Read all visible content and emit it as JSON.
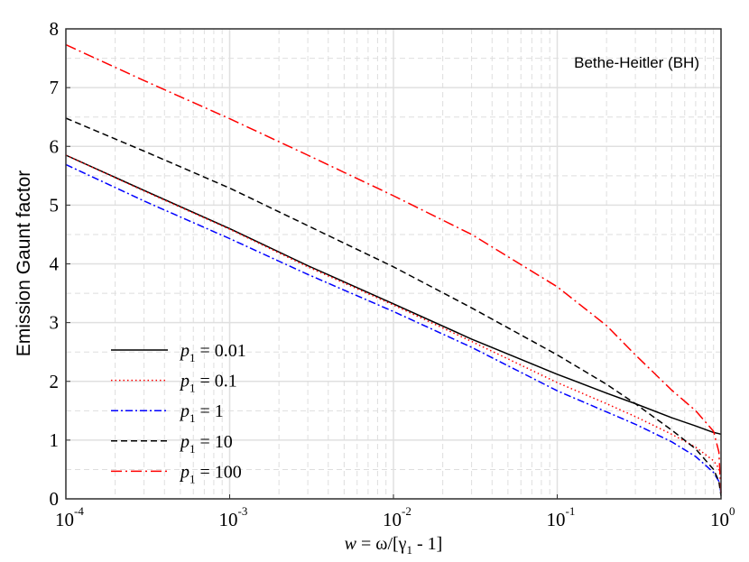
{
  "chart_data": {
    "type": "line",
    "title": "",
    "annotation": "Bethe-Heitler (BH)",
    "xlabel": "w = ω/[γ1 - 1]",
    "xlabel_parts": {
      "var": "w",
      "rest": " = ω/[γ",
      "sub": "1",
      "tail": " - 1]"
    },
    "ylabel": "Emission Gaunt factor",
    "xscale": "log",
    "xlim": [
      0.0001,
      1
    ],
    "ylim": [
      0,
      8
    ],
    "grid": true,
    "legend_position": "bottom-left",
    "x_ticks": [
      {
        "base": "10",
        "exp": "-4"
      },
      {
        "base": "10",
        "exp": "-3"
      },
      {
        "base": "10",
        "exp": "-2"
      },
      {
        "base": "10",
        "exp": "-1"
      },
      {
        "base": "10",
        "exp": "0"
      }
    ],
    "y_ticks": [
      "0",
      "1",
      "2",
      "3",
      "4",
      "5",
      "6",
      "7",
      "8"
    ],
    "x": [
      0.0001,
      0.0003,
      0.001,
      0.003,
      0.01,
      0.03,
      0.1,
      0.2,
      0.3,
      0.5,
      0.7,
      0.9,
      0.97,
      1.0
    ],
    "series": [
      {
        "name": "p1 = 0.01",
        "label_var": "p",
        "label_sub": "1",
        "label_val": " = 0.01",
        "color": "#000000",
        "dash": "solid",
        "values": [
          5.85,
          5.25,
          4.6,
          3.97,
          3.32,
          2.72,
          2.12,
          1.8,
          1.62,
          1.38,
          1.24,
          1.13,
          1.11,
          1.1
        ]
      },
      {
        "name": "p1 = 0.1",
        "label_var": "p",
        "label_sub": "1",
        "label_val": " = 0.1",
        "color": "#ff0000",
        "dash": "dotted",
        "values": [
          5.85,
          5.24,
          4.59,
          3.95,
          3.3,
          2.68,
          1.98,
          1.62,
          1.4,
          1.1,
          0.88,
          0.65,
          0.52,
          0.3
        ]
      },
      {
        "name": "p1 = 1",
        "label_var": "p",
        "label_sub": "1",
        "label_val": " = 1",
        "color": "#0000ff",
        "dash": "dashdot",
        "values": [
          5.69,
          5.07,
          4.43,
          3.82,
          3.19,
          2.58,
          1.84,
          1.48,
          1.27,
          0.97,
          0.72,
          0.45,
          0.3,
          0.1
        ]
      },
      {
        "name": "p1 = 10",
        "label_var": "p",
        "label_sub": "1",
        "label_val": " = 10",
        "color": "#000000",
        "dash": "dashed",
        "values": [
          6.48,
          5.92,
          5.29,
          4.65,
          3.95,
          3.25,
          2.45,
          1.95,
          1.62,
          1.17,
          0.85,
          0.5,
          0.3,
          0.05
        ]
      },
      {
        "name": "p1 = 100",
        "label_var": "p",
        "label_sub": "1",
        "label_val": " = 100",
        "color": "#ff0000",
        "dash": "longdashdot",
        "values": [
          7.73,
          7.12,
          6.47,
          5.85,
          5.16,
          4.5,
          3.61,
          2.95,
          2.45,
          1.85,
          1.5,
          1.15,
          0.8,
          0.1
        ]
      }
    ]
  }
}
